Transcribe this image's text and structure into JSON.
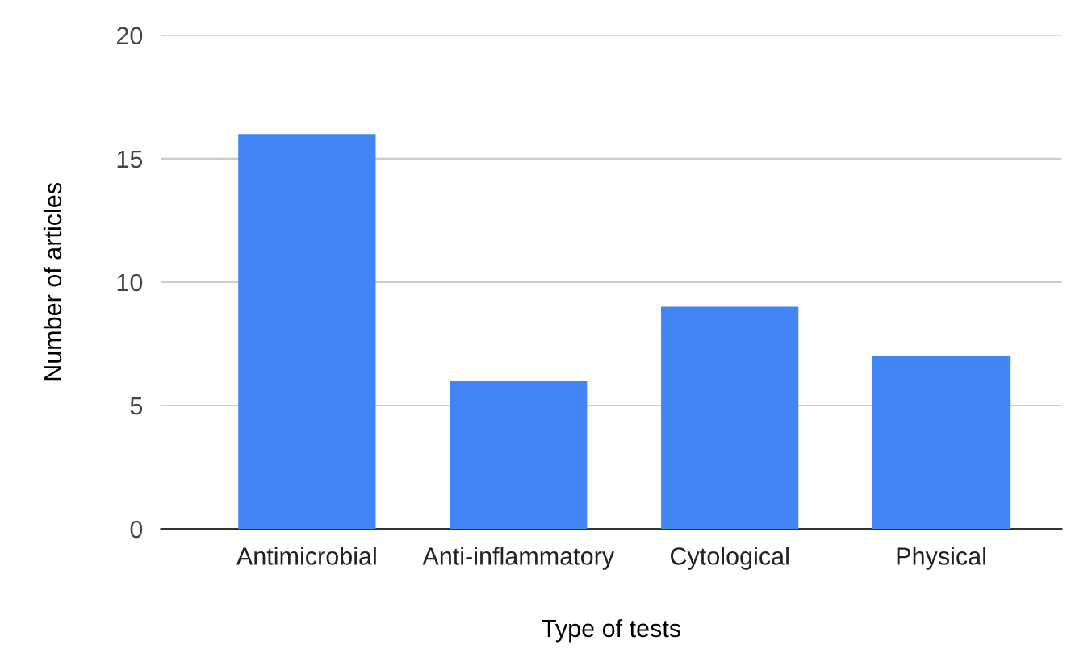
{
  "chart_data": {
    "type": "bar",
    "xlabel": "Type of tests",
    "ylabel": "Number of articles",
    "categories": [
      "Antimicrobial",
      "Anti-inflammatory",
      "Cytological",
      "Physical"
    ],
    "values": [
      16,
      6,
      9,
      7
    ],
    "color": "#4285f4",
    "ylim": [
      0,
      20
    ],
    "yticks": [
      0,
      5,
      10,
      15,
      20
    ],
    "grid": "y",
    "legend": false
  }
}
